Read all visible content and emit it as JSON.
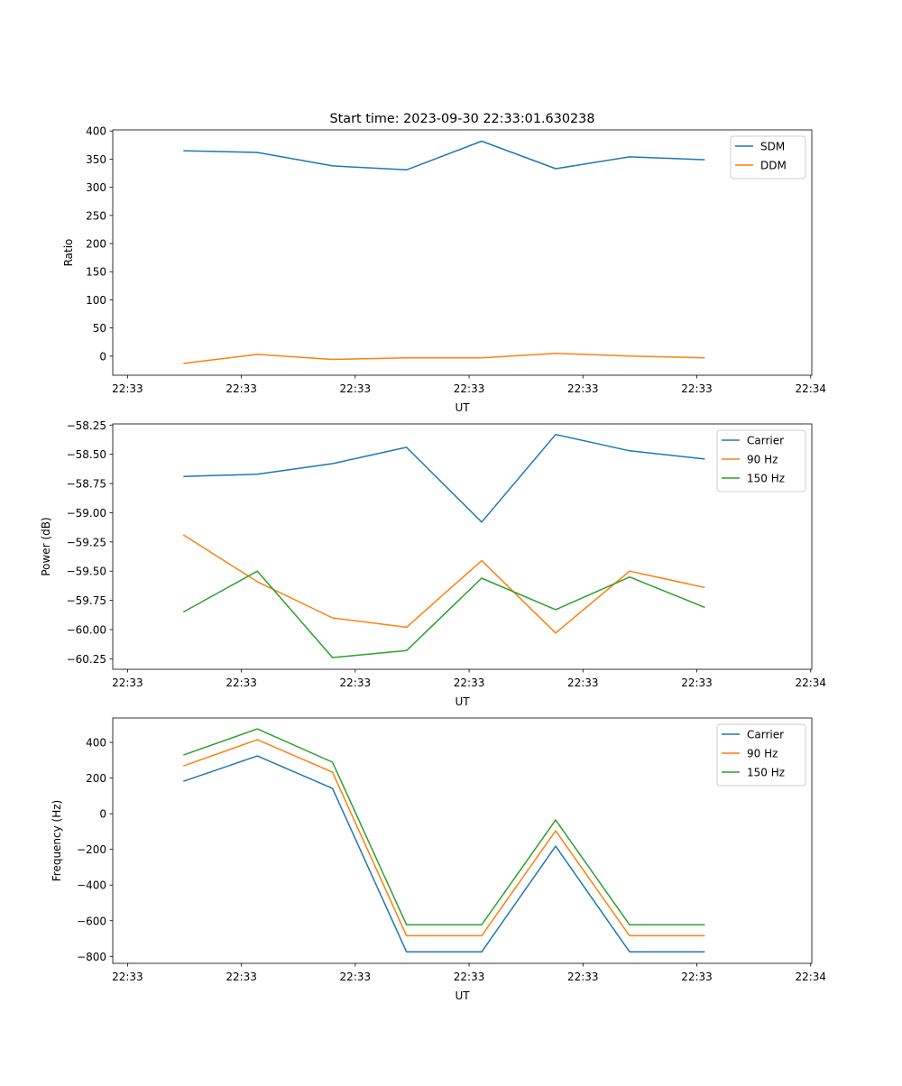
{
  "chart_data": [
    {
      "type": "line",
      "title": "Start time: 2023-09-30 22:33:01.630238",
      "xlabel": "UT",
      "ylabel": "Ratio",
      "x": [
        4.9,
        11.4,
        18.0,
        24.5,
        31.1,
        37.6,
        44.1,
        50.7
      ],
      "xlim": [
        -1.3,
        60.1
      ],
      "xticks": [
        0,
        10,
        20,
        30,
        40,
        50,
        60
      ],
      "xtick_labels": [
        "22:33",
        "22:33",
        "22:33",
        "22:33",
        "22:33",
        "22:33",
        "22:34"
      ],
      "ylim": [
        -34,
        402
      ],
      "yticks": [
        0,
        50,
        100,
        150,
        200,
        250,
        300,
        350,
        400
      ],
      "ytick_labels": [
        "0",
        "50",
        "100",
        "150",
        "200",
        "250",
        "300",
        "350",
        "400"
      ],
      "legend": "top-right",
      "series": [
        {
          "name": "SDM",
          "color": "#1f77b4",
          "values": [
            365,
            362,
            338,
            331,
            382,
            333,
            354,
            349
          ]
        },
        {
          "name": "DDM",
          "color": "#ff7f0e",
          "values": [
            -13,
            3,
            -6,
            -3,
            -3,
            5,
            0,
            -3
          ]
        }
      ]
    },
    {
      "type": "line",
      "title": "",
      "xlabel": "UT",
      "ylabel": "Power (dB)",
      "x": [
        4.9,
        11.4,
        18.0,
        24.5,
        31.1,
        37.6,
        44.1,
        50.7
      ],
      "xlim": [
        -1.3,
        60.1
      ],
      "xticks": [
        0,
        10,
        20,
        30,
        40,
        50,
        60
      ],
      "xtick_labels": [
        "22:33",
        "22:33",
        "22:33",
        "22:33",
        "22:33",
        "22:33",
        "22:34"
      ],
      "ylim": [
        -60.34,
        -58.24
      ],
      "yticks": [
        -60.25,
        -60.0,
        -59.75,
        -59.5,
        -59.25,
        -59.0,
        -58.75,
        -58.5,
        -58.25
      ],
      "ytick_labels": [
        "−60.25",
        "−60.00",
        "−59.75",
        "−59.50",
        "−59.25",
        "−59.00",
        "−58.75",
        "−58.50",
        "−58.25"
      ],
      "legend": "top-right",
      "series": [
        {
          "name": "Carrier",
          "color": "#1f77b4",
          "values": [
            -58.69,
            -58.67,
            -58.58,
            -58.44,
            -59.08,
            -58.33,
            -58.47,
            -58.54
          ]
        },
        {
          "name": "90 Hz",
          "color": "#ff7f0e",
          "values": [
            -59.19,
            -59.59,
            -59.9,
            -59.98,
            -59.41,
            -60.03,
            -59.5,
            -59.64
          ]
        },
        {
          "name": "150 Hz",
          "color": "#2ca02c",
          "values": [
            -59.85,
            -59.5,
            -60.24,
            -60.18,
            -59.56,
            -59.83,
            -59.55,
            -59.81
          ]
        }
      ]
    },
    {
      "type": "line",
      "title": "",
      "xlabel": "UT",
      "ylabel": "Frequency (Hz)",
      "x": [
        4.9,
        11.4,
        18.0,
        24.5,
        31.1,
        37.6,
        44.1,
        50.7
      ],
      "xlim": [
        -1.3,
        60.1
      ],
      "xticks": [
        0,
        10,
        20,
        30,
        40,
        50,
        60
      ],
      "xtick_labels": [
        "22:33",
        "22:33",
        "22:33",
        "22:33",
        "22:33",
        "22:33",
        "22:34"
      ],
      "ylim": [
        -839,
        537
      ],
      "yticks": [
        -800,
        -600,
        -400,
        -200,
        0,
        200,
        400
      ],
      "ytick_labels": [
        "−800",
        "−600",
        "−400",
        "−200",
        "0",
        "200",
        "400"
      ],
      "legend": "top-right",
      "series": [
        {
          "name": "Carrier",
          "color": "#1f77b4",
          "values": [
            182,
            324,
            142,
            -775,
            -775,
            -182,
            -775,
            -775
          ]
        },
        {
          "name": "90 Hz",
          "color": "#ff7f0e",
          "values": [
            268,
            415,
            233,
            -684,
            -684,
            -96,
            -684,
            -684
          ]
        },
        {
          "name": "150 Hz",
          "color": "#2ca02c",
          "values": [
            329,
            476,
            289,
            -623,
            -623,
            -35,
            -623,
            -623
          ]
        }
      ]
    }
  ]
}
